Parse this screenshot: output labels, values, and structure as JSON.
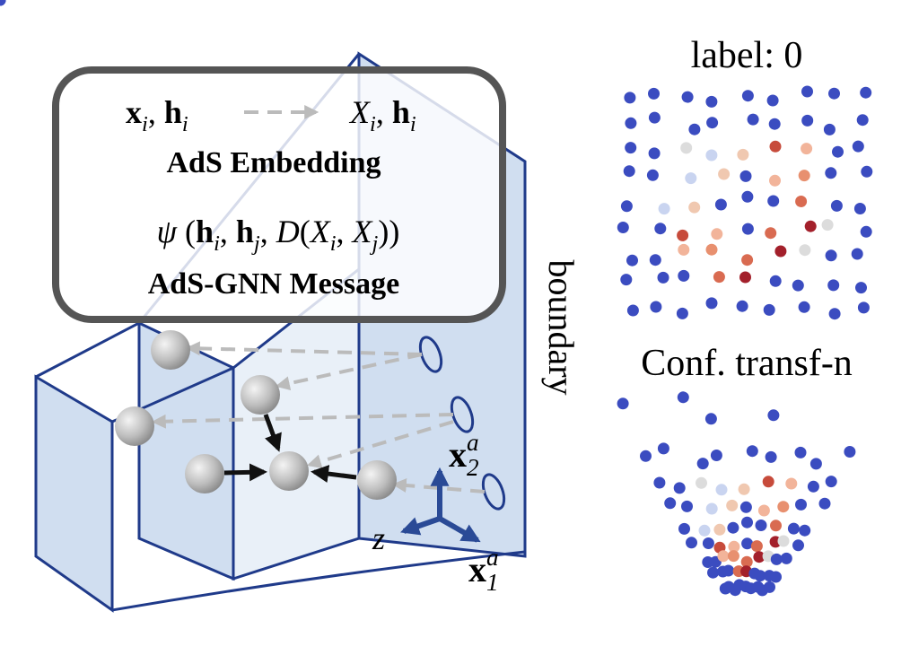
{
  "box": {
    "embedding_input": [
      {
        "text": "x",
        "style": "bold",
        "sub": "i"
      },
      {
        "text": ", "
      },
      {
        "text": "h",
        "style": "bold",
        "sub": "i"
      }
    ],
    "embedding_output": [
      {
        "text": "X",
        "style": "italic",
        "sub": "i"
      },
      {
        "text": ", "
      },
      {
        "text": "h",
        "style": "bold",
        "sub": "i"
      }
    ],
    "embedding_title": "AdS Embedding",
    "message_formula": [
      {
        "text": "ψ",
        "style": "italic"
      },
      {
        "text": " ("
      },
      {
        "text": "h",
        "style": "bold",
        "sub": "i"
      },
      {
        "text": ", "
      },
      {
        "text": "h",
        "style": "bold",
        "sub": "j"
      },
      {
        "text": ", "
      },
      {
        "text": "D",
        "style": "italic"
      },
      {
        "text": "("
      },
      {
        "text": "X",
        "style": "italic",
        "sub": "i"
      },
      {
        "text": ", "
      },
      {
        "text": "X",
        "style": "italic",
        "sub": "j"
      },
      {
        "text": "))"
      }
    ],
    "message_title": "AdS-GNN Message"
  },
  "axes": {
    "z": [
      {
        "text": "z",
        "style": "italic"
      }
    ],
    "x2": [
      {
        "text": "x",
        "style": "bold",
        "sub": "2",
        "sup": "a"
      }
    ],
    "x1": [
      {
        "text": "x",
        "style": "bold",
        "sub": "1",
        "sup": "a"
      }
    ]
  },
  "boundary_label": "boundary",
  "panels": {
    "top_title": "label: 0",
    "bottom_title": "Conf. transf-n"
  }
}
